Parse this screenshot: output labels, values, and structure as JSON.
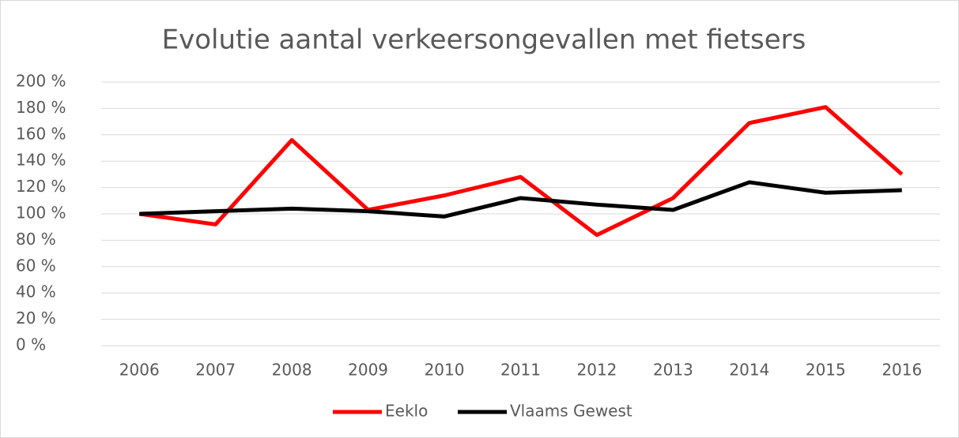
{
  "chart_data": {
    "type": "line",
    "title": "Evolutie aantal verkeersongevallen met fietsers",
    "categories": [
      "2006",
      "2007",
      "2008",
      "2009",
      "2010",
      "2011",
      "2012",
      "2013",
      "2014",
      "2015",
      "2016"
    ],
    "series": [
      {
        "name": "Eeklo",
        "color": "#ff0000",
        "values": [
          100,
          92,
          156,
          103,
          114,
          128,
          84,
          112,
          169,
          181,
          130
        ]
      },
      {
        "name": "Vlaams Gewest",
        "color": "#000000",
        "values": [
          100,
          102,
          104,
          102,
          98,
          112,
          107,
          103,
          124,
          116,
          118
        ]
      }
    ],
    "ylim": [
      0,
      200
    ],
    "yticks": [
      {
        "value": 0,
        "label": "0 %"
      },
      {
        "value": 20,
        "label": "20 %"
      },
      {
        "value": 40,
        "label": "40 %"
      },
      {
        "value": 60,
        "label": "60 %"
      },
      {
        "value": 80,
        "label": "80 %"
      },
      {
        "value": 100,
        "label": "100 %"
      },
      {
        "value": 120,
        "label": "120 %"
      },
      {
        "value": 140,
        "label": "140 %"
      },
      {
        "value": 160,
        "label": "160 %"
      },
      {
        "value": 180,
        "label": "180 %"
      },
      {
        "value": 200,
        "label": "200 %"
      }
    ],
    "grid": true,
    "legend": "bottom"
  }
}
